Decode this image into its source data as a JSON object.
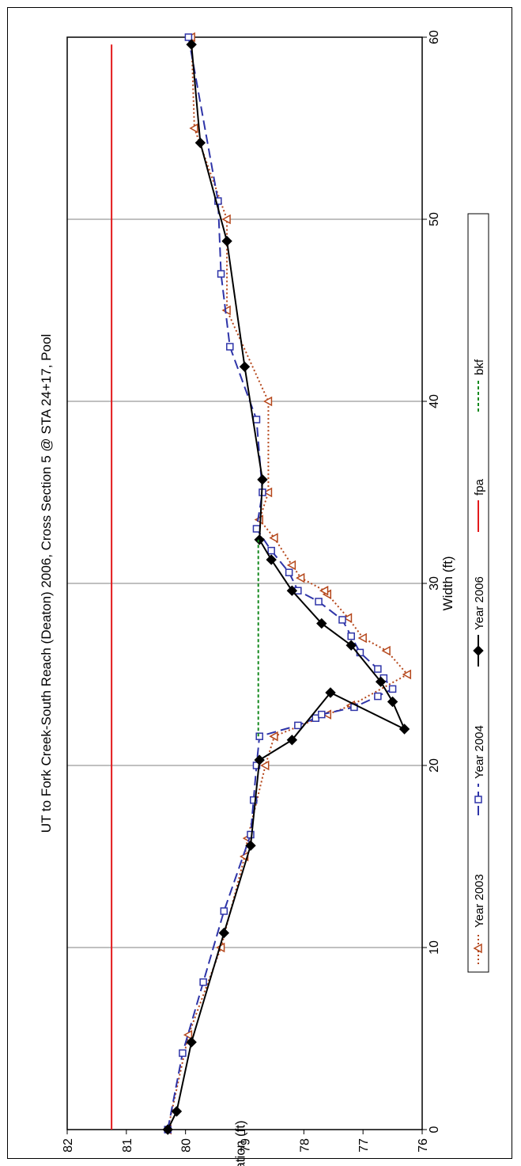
{
  "chart_data": {
    "type": "line",
    "title": "UT to Fork Creek-South Reach (Deaton) 2006, Cross Section 5 @ STA 24+17, Pool",
    "xlabel": "Width (ft)",
    "ylabel": "Elevation (ft)",
    "xlim": [
      0,
      60
    ],
    "ylim": [
      76,
      82
    ],
    "x_ticks": [
      "0",
      "10",
      "20",
      "30",
      "40",
      "50",
      "60"
    ],
    "y_ticks": [
      "76",
      "77",
      "78",
      "79",
      "80",
      "81",
      "82"
    ],
    "grid": "vertical gridlines at each x tick",
    "legend_position": "right side",
    "orientation": "rotated 90 degrees clockwise",
    "series": [
      {
        "name": "Year 2003",
        "color": "#b5471b",
        "dash": "dotted",
        "marker": "open-triangle",
        "x": [
          0,
          5.2,
          10,
          15,
          16,
          20,
          21.6,
          22.8,
          23.3,
          25,
          26.3,
          27,
          28.1,
          29.4,
          29.6,
          30.3,
          31,
          32.5,
          33.5,
          35,
          40,
          45,
          50,
          55,
          60
        ],
        "y": [
          80.3,
          79.95,
          79.4,
          79.0,
          78.95,
          78.65,
          78.5,
          77.6,
          77.2,
          76.25,
          76.6,
          77.0,
          77.25,
          77.6,
          77.65,
          78.05,
          78.2,
          78.5,
          78.75,
          78.6,
          78.6,
          79.3,
          79.3,
          79.85,
          79.9
        ]
      },
      {
        "name": "Year 2004",
        "color": "#2e34a8",
        "dash": "long-dash",
        "marker": "open-square",
        "x": [
          0,
          4.2,
          8.1,
          12,
          16.2,
          18.1,
          20,
          21.6,
          22.2,
          22.6,
          22.8,
          23.2,
          23.8,
          24.2,
          24.8,
          25.3,
          26.2,
          27.1,
          28,
          29,
          29.6,
          30.6,
          31.8,
          33,
          35,
          39,
          43,
          47,
          51,
          60
        ],
        "y": [
          80.3,
          80.05,
          79.7,
          79.35,
          78.9,
          78.85,
          78.8,
          78.75,
          78.1,
          77.8,
          77.7,
          77.15,
          76.75,
          76.5,
          76.65,
          76.75,
          77.05,
          77.2,
          77.35,
          77.75,
          78.1,
          78.25,
          78.55,
          78.8,
          78.7,
          78.8,
          79.25,
          79.4,
          79.45,
          79.95
        ]
      },
      {
        "name": "Year 2006",
        "color": "#000000",
        "dash": "solid",
        "marker": "filled-diamond",
        "x": [
          0,
          1,
          4.8,
          10.8,
          15.6,
          20.3,
          21.4,
          24,
          22,
          23.5,
          24.6,
          26.6,
          27.8,
          29.6,
          31.3,
          32.4,
          35.7,
          41.9,
          48.8,
          54.2,
          59.6
        ],
        "y": [
          80.3,
          80.15,
          79.9,
          79.35,
          78.9,
          78.75,
          78.2,
          77.55,
          76.3,
          76.5,
          76.7,
          77.2,
          77.7,
          78.2,
          78.55,
          78.75,
          78.7,
          79.0,
          79.3,
          79.75,
          79.9
        ]
      },
      {
        "name": "fpa",
        "color": "#e31a1c",
        "dash": "solid",
        "marker": "none",
        "x": [
          0,
          59.6
        ],
        "y": [
          81.25,
          81.25
        ]
      },
      {
        "name": "bkf",
        "color": "#14891e",
        "dash": "dashed",
        "marker": "none",
        "x": [
          21.6,
          32.4
        ],
        "y": [
          78.77,
          78.77
        ]
      }
    ]
  }
}
